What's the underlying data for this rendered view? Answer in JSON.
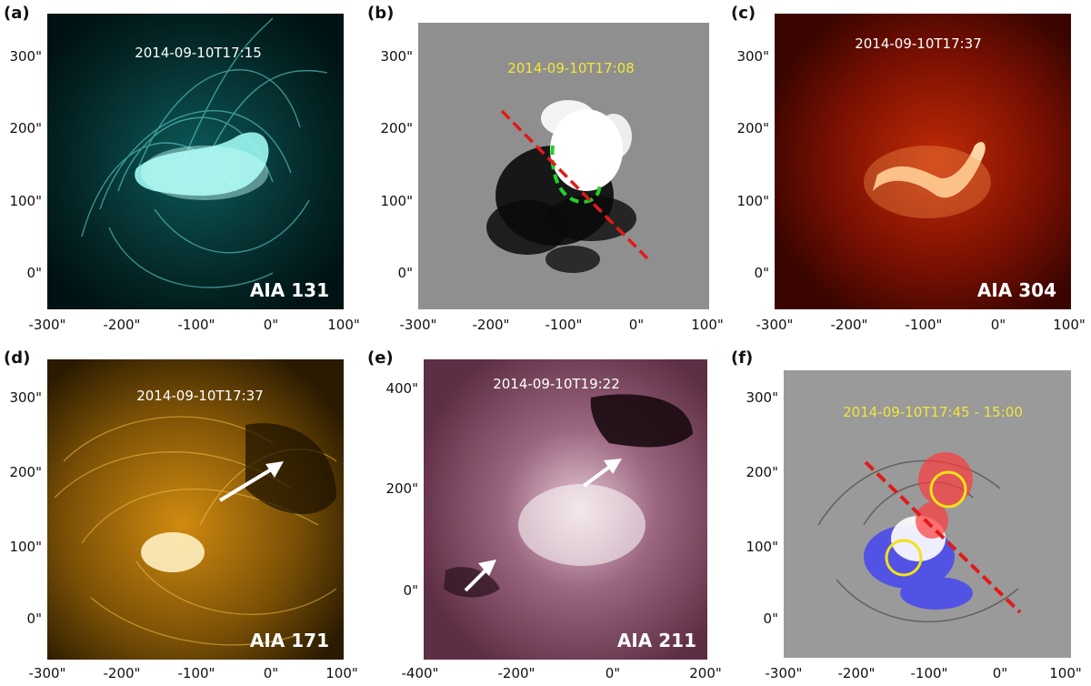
{
  "panels": [
    {
      "id": "a",
      "label": "(a)",
      "timestamp": "2014-09-10T17:15",
      "timestamp_color": "#ffffff",
      "channel": "AIA 131",
      "x_ticks": [
        "-300\"",
        "-200\"",
        "-100\"",
        "0\"",
        "100\""
      ],
      "y_ticks": [
        "0\"",
        "100\"",
        "200\"",
        "300\""
      ],
      "colors": {
        "bg": "#001314",
        "glow": "#7ff2ee",
        "mid": "#1a8a86"
      }
    },
    {
      "id": "b",
      "label": "(b)",
      "timestamp": "2014-09-10T17:08",
      "timestamp_color": "#f2e63a",
      "channel": "",
      "x_ticks": [
        "-300\"",
        "-200\"",
        "-100\"",
        "0\"",
        "100\""
      ],
      "y_ticks": [
        "0\"",
        "100\"",
        "200\"",
        "300\""
      ],
      "colors": {
        "bg": "#8f8f8f",
        "pos": "#ffffff",
        "neg": "#0a0a0a",
        "dash_red": "#e01a1a",
        "dash_green": "#22d12a"
      }
    },
    {
      "id": "c",
      "label": "(c)",
      "timestamp": "2014-09-10T17:37",
      "timestamp_color": "#ffffff",
      "channel": "AIA 304",
      "x_ticks": [
        "-300\"",
        "-200\"",
        "-100\"",
        "0\"",
        "100\""
      ],
      "y_ticks": [
        "0\"",
        "100\"",
        "200\"",
        "300\""
      ],
      "colors": {
        "bg": "#3a0500",
        "glow": "#ffd8a0",
        "mid": "#c83008"
      }
    },
    {
      "id": "d",
      "label": "(d)",
      "timestamp": "2014-09-10T17:37",
      "timestamp_color": "#ffffff",
      "channel": "AIA 171",
      "x_ticks": [
        "-300\"",
        "-200\"",
        "-100\"",
        "0\"",
        "100\""
      ],
      "y_ticks": [
        "0\"",
        "100\"",
        "200\"",
        "300\""
      ],
      "colors": {
        "bg": "#2a1a00",
        "glow": "#ffe79a",
        "mid": "#c58a10"
      }
    },
    {
      "id": "e",
      "label": "(e)",
      "timestamp": "2014-09-10T19:22",
      "timestamp_color": "#ffffff",
      "channel": "AIA 211",
      "x_ticks": [
        "-400\"",
        "-200\"",
        "0\"",
        "200\""
      ],
      "y_ticks": [
        "0\"",
        "200\"",
        "400\""
      ],
      "colors": {
        "bg": "#6e3a52",
        "glow": "#f4e2ea",
        "mid": "#9b6680"
      }
    },
    {
      "id": "f",
      "label": "(f)",
      "timestamp": "2014-09-10T17:45 - 15:00",
      "timestamp_color": "#f2e63a",
      "channel": "",
      "x_ticks": [
        "-300\"",
        "-200\"",
        "-100\"",
        "0\"",
        "100\""
      ],
      "y_ticks": [
        "0\"",
        "100\"",
        "200\"",
        "300\""
      ],
      "colors": {
        "bg": "#9a9a9a",
        "dash_red": "#e01a1a",
        "circle": "#f2e21a",
        "blue": "#3b3bff",
        "red": "#ff3b3b"
      }
    }
  ]
}
